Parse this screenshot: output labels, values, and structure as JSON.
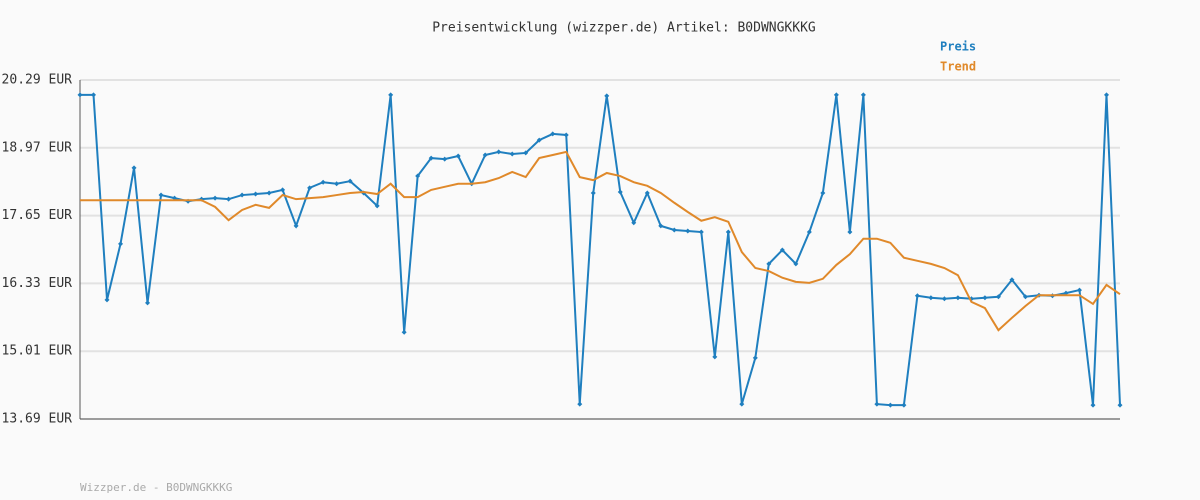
{
  "chart_data": {
    "type": "line",
    "title": "Preisentwicklung (wizzper.de) Artikel: B0DWNGKKKG",
    "footer": "Wizzper.de - B0DWNGKKKG",
    "ylim": [
      13.69,
      20.29
    ],
    "yticks": [
      {
        "value": 13.69,
        "label": "13.69 EUR"
      },
      {
        "value": 15.01,
        "label": "15.01 EUR"
      },
      {
        "value": 16.33,
        "label": "16.33 EUR"
      },
      {
        "value": 17.65,
        "label": "17.65 EUR"
      },
      {
        "value": 18.97,
        "label": "18.97 EUR"
      },
      {
        "value": 20.29,
        "label": "20.29 EUR"
      }
    ],
    "grid": true,
    "series": [
      {
        "name": "Preis",
        "color": "#1f7fbf",
        "markers": true,
        "values": [
          20.0,
          20.0,
          16.01,
          17.1,
          18.58,
          15.95,
          18.05,
          17.99,
          17.93,
          17.97,
          17.99,
          17.97,
          18.05,
          18.07,
          18.09,
          18.15,
          17.45,
          18.19,
          18.3,
          18.27,
          18.32,
          18.09,
          17.84,
          20.0,
          15.38,
          18.42,
          18.77,
          18.75,
          18.81,
          18.27,
          18.83,
          18.89,
          18.85,
          18.87,
          19.12,
          19.24,
          19.22,
          13.98,
          18.09,
          19.98,
          18.11,
          17.51,
          18.09,
          17.45,
          17.37,
          17.35,
          17.33,
          14.9,
          17.33,
          13.98,
          14.88,
          16.71,
          16.98,
          16.71,
          17.33,
          18.09,
          20.0,
          17.33,
          20.0,
          13.98,
          13.96,
          13.96,
          16.09,
          16.05,
          16.03,
          16.05,
          16.03,
          16.05,
          16.07,
          16.4,
          16.07,
          16.1,
          16.09,
          16.14,
          16.2,
          13.96,
          20.0,
          13.96
        ]
      },
      {
        "name": "Trend",
        "color": "#e0892a",
        "markers": false,
        "values": [
          17.95,
          17.95,
          17.95,
          17.95,
          17.95,
          17.95,
          17.95,
          17.95,
          17.95,
          17.95,
          17.82,
          17.56,
          17.76,
          17.86,
          17.8,
          18.05,
          17.97,
          17.99,
          18.01,
          18.05,
          18.09,
          18.11,
          18.07,
          18.27,
          18.01,
          18.01,
          18.15,
          18.21,
          18.27,
          18.27,
          18.3,
          18.38,
          18.5,
          18.4,
          18.77,
          18.83,
          18.89,
          18.4,
          18.34,
          18.48,
          18.42,
          18.3,
          18.23,
          18.09,
          17.9,
          17.72,
          17.55,
          17.62,
          17.53,
          16.94,
          16.63,
          16.57,
          16.44,
          16.36,
          16.34,
          16.42,
          16.69,
          16.9,
          17.2,
          17.2,
          17.12,
          16.83,
          16.77,
          16.71,
          16.63,
          16.49,
          15.97,
          15.85,
          15.42,
          15.66,
          15.89,
          16.1,
          16.1,
          16.1,
          16.1,
          15.93,
          16.3,
          16.12
        ]
      }
    ]
  }
}
